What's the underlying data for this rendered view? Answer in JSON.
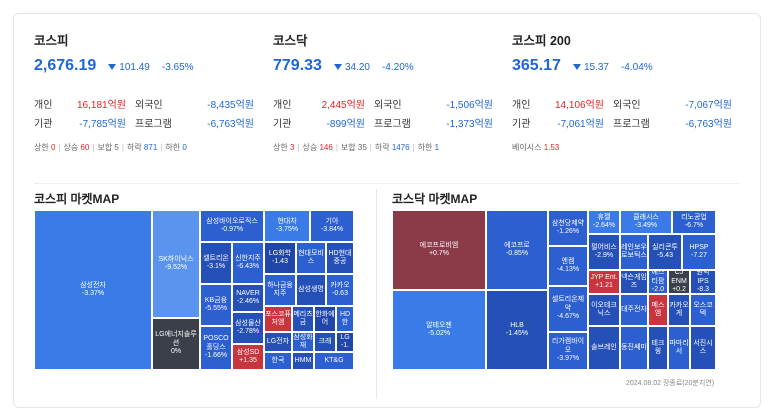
{
  "indices": [
    {
      "name": "코스피",
      "value": "2,676.19",
      "change": "101.49",
      "pct": "-3.65%",
      "rows": [
        [
          "개인",
          "16,181억원",
          "외국인",
          "-8,435억원"
        ],
        [
          "기관",
          "-7,785억원",
          "프로그램",
          "-6,763억원"
        ]
      ],
      "breadth": {
        "upper_label": "상한",
        "upper": "0",
        "rise_label": "상승",
        "rise": "60",
        "flat_label": "보합",
        "flat": "5",
        "fall_label": "하락",
        "fall": "871",
        "lower_label": "하한",
        "lower": "0"
      }
    },
    {
      "name": "코스닥",
      "value": "779.33",
      "change": "34.20",
      "pct": "-4.20%",
      "rows": [
        [
          "개인",
          "2,445억원",
          "외국인",
          "-1,506억원"
        ],
        [
          "기관",
          "-899억원",
          "프로그램",
          "-1,373억원"
        ]
      ],
      "breadth": {
        "upper_label": "상한",
        "upper": "3",
        "rise_label": "상승",
        "rise": "146",
        "flat_label": "보합",
        "flat": "35",
        "fall_label": "하락",
        "fall": "1476",
        "lower_label": "하한",
        "lower": "1"
      }
    },
    {
      "name": "코스피 200",
      "value": "365.17",
      "change": "15.37",
      "pct": "-4.04%",
      "rows": [
        [
          "개인",
          "14,106억원",
          "외국인",
          "-7,067억원"
        ],
        [
          "기관",
          "-7,061억원",
          "프로그램",
          "-6,763억원"
        ]
      ],
      "basis_label": "베이시스",
      "basis": "1.53"
    }
  ],
  "kospi_map": {
    "title": "코스피 마켓MAP",
    "tiles": [
      {
        "n": "삼성전자",
        "p": "-3.37%"
      },
      {
        "n": "SK하이닉스",
        "p": "-9.52%"
      },
      {
        "n": "LG에너지솔루션",
        "p": "0%"
      },
      {
        "n": "삼성바이오로직스",
        "p": "-0.97%"
      },
      {
        "n": "현대차",
        "p": "-3.75%"
      },
      {
        "n": "기아",
        "p": "-3.84%"
      },
      {
        "n": "셀트리온",
        "p": "-3.1%"
      },
      {
        "n": "신한지주",
        "p": "-6.43%"
      },
      {
        "n": "LG화학",
        "p": "-1.43"
      },
      {
        "n": "현대모비스",
        "p": ""
      },
      {
        "n": "HD현대중공",
        "p": ""
      },
      {
        "n": "KB금융",
        "p": "-5.55%"
      },
      {
        "n": "NAVER",
        "p": "-2.46%"
      },
      {
        "n": "하나금융지주",
        "p": ""
      },
      {
        "n": "삼성생명",
        "p": ""
      },
      {
        "n": "카카오",
        "p": "-0.63"
      },
      {
        "n": "삼성물산",
        "p": "-2.78%"
      },
      {
        "n": "포스코퓨처엠",
        "p": ""
      },
      {
        "n": "메리츠금",
        "p": ""
      },
      {
        "n": "한화에어",
        "p": ""
      },
      {
        "n": "HD한",
        "p": ""
      },
      {
        "n": "POSCO홀딩스",
        "p": "-1.66%"
      },
      {
        "n": "삼성SD",
        "p": "+1.35"
      },
      {
        "n": "LG전자",
        "p": ""
      },
      {
        "n": "삼성화재",
        "p": ""
      },
      {
        "n": "크래",
        "p": ""
      },
      {
        "n": "LG",
        "p": "-1."
      },
      {
        "n": "한국",
        "p": ""
      },
      {
        "n": "HMM",
        "p": ""
      },
      {
        "n": "KT&G",
        "p": ""
      }
    ]
  },
  "kosdaq_map": {
    "title": "코스닥 마켓MAP",
    "tiles": [
      {
        "n": "에코프로비엠",
        "p": "+0.7%"
      },
      {
        "n": "알테오젠",
        "p": "-5.02%"
      },
      {
        "n": "에코프로",
        "p": "-0.85%"
      },
      {
        "n": "HLB",
        "p": "-1.45%"
      },
      {
        "n": "삼천당제약",
        "p": "-1.26%"
      },
      {
        "n": "휴젤",
        "p": "-2.64%"
      },
      {
        "n": "클래시스",
        "p": "-3.49%"
      },
      {
        "n": "리노공업",
        "p": "-6.7%"
      },
      {
        "n": "엔켐",
        "p": "-4.13%"
      },
      {
        "n": "펄어비스",
        "p": "-2.9%"
      },
      {
        "n": "레인보우로보틱스",
        "p": ""
      },
      {
        "n": "실리콘투",
        "p": "-5.43"
      },
      {
        "n": "HPSP",
        "p": "-7.27"
      },
      {
        "n": "셀트리온제약",
        "p": "-4.67%"
      },
      {
        "n": "JYP Ent.",
        "p": "+1.21"
      },
      {
        "n": "넥슨게임즈",
        "p": ""
      },
      {
        "n": "에스티팜",
        "p": "-2.0"
      },
      {
        "n": "CJ ENM",
        "p": "+0.2"
      },
      {
        "n": "원익IPS",
        "p": "-8.3"
      },
      {
        "n": "리가켐바이오",
        "p": "-3.97%"
      },
      {
        "n": "이오테크닉스",
        "p": ""
      },
      {
        "n": "대주전자",
        "p": ""
      },
      {
        "n": "메스엠",
        "p": ""
      },
      {
        "n": "카카오게",
        "p": ""
      },
      {
        "n": "오스코텍",
        "p": ""
      },
      {
        "n": "솔브레인",
        "p": ""
      },
      {
        "n": "동진쎄미",
        "p": ""
      },
      {
        "n": "테크윙",
        "p": ""
      },
      {
        "n": "파마리서",
        "p": ""
      },
      {
        "n": "서진시스",
        "p": ""
      }
    ]
  },
  "footer": "2024.08.02 장종료(20분지연)"
}
